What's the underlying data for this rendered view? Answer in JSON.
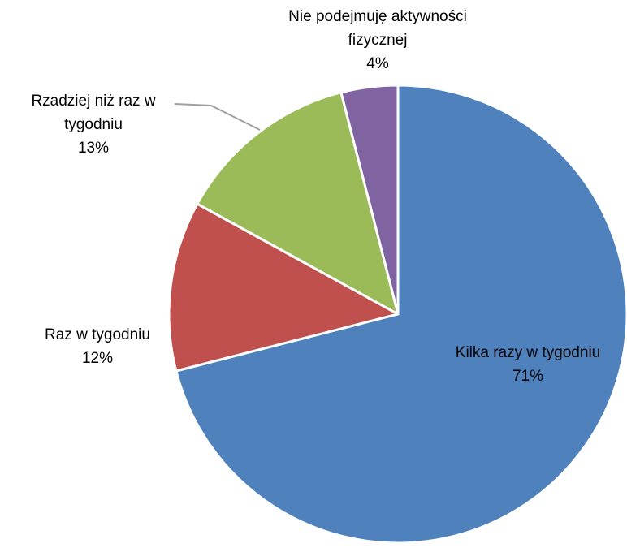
{
  "chart_data": {
    "type": "pie",
    "categories": [
      "Kilka razy w tygodniu",
      "Raz w tygodniu",
      "Rzadziej niż raz w tygodniu",
      "Nie podejmuję aktywności fizycznej"
    ],
    "values": [
      71,
      12,
      13,
      4
    ],
    "value_labels": [
      "71%",
      "12%",
      "13%",
      "4%"
    ],
    "colors": [
      "#4f81bd",
      "#c0504d",
      "#9bbb59",
      "#8064a2"
    ]
  }
}
